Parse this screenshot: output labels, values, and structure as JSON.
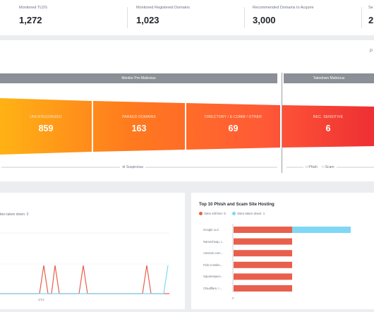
{
  "stats": [
    {
      "label": "Monitored TLDS",
      "value": "1,272"
    },
    {
      "label": "Monitored Registered Domains",
      "value": "1,023"
    },
    {
      "label": "Recommended Domains to Acquire",
      "value": "3,000"
    },
    {
      "label": "Se",
      "value": "2"
    }
  ],
  "funnel": {
    "header_right_partial": "P",
    "phases": [
      {
        "label": "Monitor Pre-Malicious"
      },
      {
        "label": "Takedown Malicious"
      }
    ],
    "stages": [
      {
        "label": "UNCATEGORIZED",
        "value": "859"
      },
      {
        "label": "PARKED DOMAINS",
        "value": "163"
      },
      {
        "label": "DIRECTORY / E-COMM / OTHER",
        "value": "69"
      },
      {
        "label": "REC. SENSITIVE",
        "value": "6"
      }
    ],
    "footer": {
      "suspicious": "Suspicious",
      "phish": "Phish",
      "scam": "Scam"
    },
    "colors": {
      "start": "#ffae12",
      "mid": "#ff6d2e",
      "end": "#f23b3b"
    }
  },
  "line_chart": {
    "legend_partial": "ites taken down: 3",
    "x_tick": "4/24",
    "colors": {
      "series_a": "#e8604c",
      "series_b": "#7fd7f5"
    }
  },
  "hosting": {
    "title": "Top 10 Phish and Scam Site Hosting",
    "legend": [
      {
        "name": "Sites still live: 8",
        "color": "#e8604c"
      },
      {
        "name": "Sites taken down: 1",
        "color": "#7fd7f5"
      }
    ],
    "x_tick": "0",
    "chart_data": {
      "type": "bar",
      "orientation": "horizontal",
      "stacked": true,
      "categories": [
        "Google LLC",
        "Namecheap, I...",
        "Amazon.com...",
        "Fido Combin...",
        "Squarespace...",
        "Cloudflare, I..."
      ],
      "series": [
        {
          "name": "Sites still live: 8",
          "values": [
            1,
            1,
            1,
            1,
            1,
            1
          ]
        },
        {
          "name": "Sites taken down: 1",
          "values": [
            1,
            0,
            0,
            0,
            0,
            0
          ]
        }
      ]
    }
  }
}
